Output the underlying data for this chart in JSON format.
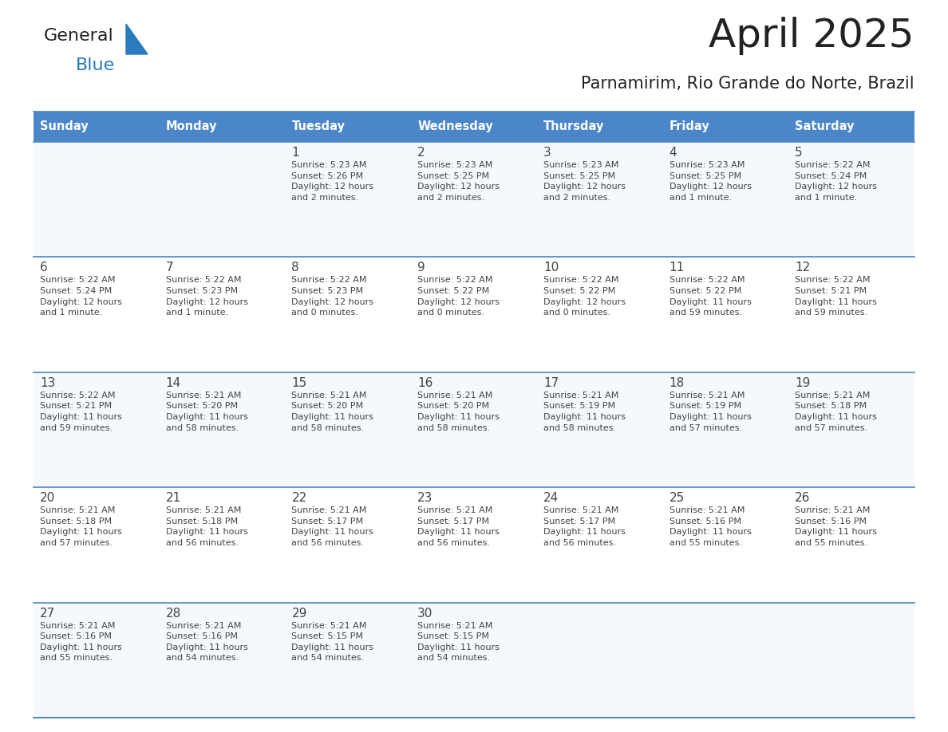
{
  "title": "April 2025",
  "subtitle": "Parnamirim, Rio Grande do Norte, Brazil",
  "header_color": "#4a86c8",
  "header_text_color": "#ffffff",
  "cell_bg_even": "#f5f8fd",
  "cell_bg_odd": "#ffffff",
  "cell_text_color": "#444444",
  "line_color": "#4a86c8",
  "logo_general_color": "#222222",
  "logo_blue_color": "#2a7abf",
  "logo_triangle_color": "#2a7abf",
  "title_color": "#222222",
  "subtitle_color": "#222222",
  "days_of_week": [
    "Sunday",
    "Monday",
    "Tuesday",
    "Wednesday",
    "Thursday",
    "Friday",
    "Saturday"
  ],
  "calendar": [
    [
      {
        "day": "",
        "info": ""
      },
      {
        "day": "",
        "info": ""
      },
      {
        "day": "1",
        "info": "Sunrise: 5:23 AM\nSunset: 5:26 PM\nDaylight: 12 hours\nand 2 minutes."
      },
      {
        "day": "2",
        "info": "Sunrise: 5:23 AM\nSunset: 5:25 PM\nDaylight: 12 hours\nand 2 minutes."
      },
      {
        "day": "3",
        "info": "Sunrise: 5:23 AM\nSunset: 5:25 PM\nDaylight: 12 hours\nand 2 minutes."
      },
      {
        "day": "4",
        "info": "Sunrise: 5:23 AM\nSunset: 5:25 PM\nDaylight: 12 hours\nand 1 minute."
      },
      {
        "day": "5",
        "info": "Sunrise: 5:22 AM\nSunset: 5:24 PM\nDaylight: 12 hours\nand 1 minute."
      }
    ],
    [
      {
        "day": "6",
        "info": "Sunrise: 5:22 AM\nSunset: 5:24 PM\nDaylight: 12 hours\nand 1 minute."
      },
      {
        "day": "7",
        "info": "Sunrise: 5:22 AM\nSunset: 5:23 PM\nDaylight: 12 hours\nand 1 minute."
      },
      {
        "day": "8",
        "info": "Sunrise: 5:22 AM\nSunset: 5:23 PM\nDaylight: 12 hours\nand 0 minutes."
      },
      {
        "day": "9",
        "info": "Sunrise: 5:22 AM\nSunset: 5:22 PM\nDaylight: 12 hours\nand 0 minutes."
      },
      {
        "day": "10",
        "info": "Sunrise: 5:22 AM\nSunset: 5:22 PM\nDaylight: 12 hours\nand 0 minutes."
      },
      {
        "day": "11",
        "info": "Sunrise: 5:22 AM\nSunset: 5:22 PM\nDaylight: 11 hours\nand 59 minutes."
      },
      {
        "day": "12",
        "info": "Sunrise: 5:22 AM\nSunset: 5:21 PM\nDaylight: 11 hours\nand 59 minutes."
      }
    ],
    [
      {
        "day": "13",
        "info": "Sunrise: 5:22 AM\nSunset: 5:21 PM\nDaylight: 11 hours\nand 59 minutes."
      },
      {
        "day": "14",
        "info": "Sunrise: 5:21 AM\nSunset: 5:20 PM\nDaylight: 11 hours\nand 58 minutes."
      },
      {
        "day": "15",
        "info": "Sunrise: 5:21 AM\nSunset: 5:20 PM\nDaylight: 11 hours\nand 58 minutes."
      },
      {
        "day": "16",
        "info": "Sunrise: 5:21 AM\nSunset: 5:20 PM\nDaylight: 11 hours\nand 58 minutes."
      },
      {
        "day": "17",
        "info": "Sunrise: 5:21 AM\nSunset: 5:19 PM\nDaylight: 11 hours\nand 58 minutes."
      },
      {
        "day": "18",
        "info": "Sunrise: 5:21 AM\nSunset: 5:19 PM\nDaylight: 11 hours\nand 57 minutes."
      },
      {
        "day": "19",
        "info": "Sunrise: 5:21 AM\nSunset: 5:18 PM\nDaylight: 11 hours\nand 57 minutes."
      }
    ],
    [
      {
        "day": "20",
        "info": "Sunrise: 5:21 AM\nSunset: 5:18 PM\nDaylight: 11 hours\nand 57 minutes."
      },
      {
        "day": "21",
        "info": "Sunrise: 5:21 AM\nSunset: 5:18 PM\nDaylight: 11 hours\nand 56 minutes."
      },
      {
        "day": "22",
        "info": "Sunrise: 5:21 AM\nSunset: 5:17 PM\nDaylight: 11 hours\nand 56 minutes."
      },
      {
        "day": "23",
        "info": "Sunrise: 5:21 AM\nSunset: 5:17 PM\nDaylight: 11 hours\nand 56 minutes."
      },
      {
        "day": "24",
        "info": "Sunrise: 5:21 AM\nSunset: 5:17 PM\nDaylight: 11 hours\nand 56 minutes."
      },
      {
        "day": "25",
        "info": "Sunrise: 5:21 AM\nSunset: 5:16 PM\nDaylight: 11 hours\nand 55 minutes."
      },
      {
        "day": "26",
        "info": "Sunrise: 5:21 AM\nSunset: 5:16 PM\nDaylight: 11 hours\nand 55 minutes."
      }
    ],
    [
      {
        "day": "27",
        "info": "Sunrise: 5:21 AM\nSunset: 5:16 PM\nDaylight: 11 hours\nand 55 minutes."
      },
      {
        "day": "28",
        "info": "Sunrise: 5:21 AM\nSunset: 5:16 PM\nDaylight: 11 hours\nand 54 minutes."
      },
      {
        "day": "29",
        "info": "Sunrise: 5:21 AM\nSunset: 5:15 PM\nDaylight: 11 hours\nand 54 minutes."
      },
      {
        "day": "30",
        "info": "Sunrise: 5:21 AM\nSunset: 5:15 PM\nDaylight: 11 hours\nand 54 minutes."
      },
      {
        "day": "",
        "info": ""
      },
      {
        "day": "",
        "info": ""
      },
      {
        "day": "",
        "info": ""
      }
    ]
  ]
}
